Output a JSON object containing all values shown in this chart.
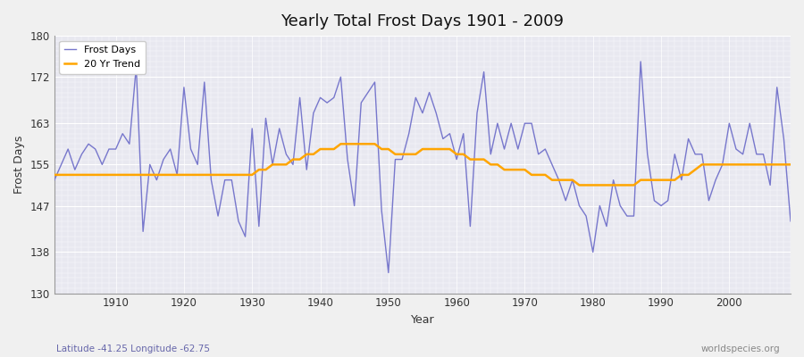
{
  "title": "Yearly Total Frost Days 1901 - 2009",
  "xlabel": "Year",
  "ylabel": "Frost Days",
  "subtitle": "Latitude -41.25 Longitude -62.75",
  "watermark": "worldspecies.org",
  "ylim": [
    130,
    180
  ],
  "yticks": [
    130,
    138,
    147,
    155,
    163,
    172,
    180
  ],
  "years": [
    1901,
    1902,
    1903,
    1904,
    1905,
    1906,
    1907,
    1908,
    1909,
    1910,
    1911,
    1912,
    1913,
    1914,
    1915,
    1916,
    1917,
    1918,
    1919,
    1920,
    1921,
    1922,
    1923,
    1924,
    1925,
    1926,
    1927,
    1928,
    1929,
    1930,
    1931,
    1932,
    1933,
    1934,
    1935,
    1936,
    1937,
    1938,
    1939,
    1940,
    1941,
    1942,
    1943,
    1944,
    1945,
    1946,
    1947,
    1948,
    1949,
    1950,
    1951,
    1952,
    1953,
    1954,
    1955,
    1956,
    1957,
    1958,
    1959,
    1960,
    1961,
    1962,
    1963,
    1964,
    1965,
    1966,
    1967,
    1968,
    1969,
    1970,
    1971,
    1972,
    1973,
    1974,
    1975,
    1976,
    1977,
    1978,
    1979,
    1980,
    1981,
    1982,
    1983,
    1984,
    1985,
    1986,
    1987,
    1988,
    1989,
    1990,
    1991,
    1992,
    1993,
    1994,
    1995,
    1996,
    1997,
    1998,
    1999,
    2000,
    2001,
    2002,
    2003,
    2004,
    2005,
    2006,
    2007,
    2008,
    2009
  ],
  "frost_days": [
    152,
    155,
    158,
    154,
    157,
    159,
    158,
    155,
    158,
    158,
    161,
    159,
    174,
    142,
    155,
    152,
    156,
    158,
    153,
    170,
    158,
    155,
    171,
    152,
    145,
    152,
    152,
    144,
    141,
    162,
    143,
    164,
    155,
    162,
    157,
    155,
    168,
    154,
    165,
    168,
    167,
    168,
    172,
    156,
    147,
    167,
    169,
    171,
    146,
    134,
    156,
    156,
    161,
    168,
    165,
    169,
    165,
    160,
    161,
    156,
    161,
    143,
    165,
    173,
    157,
    163,
    158,
    163,
    158,
    163,
    163,
    157,
    158,
    155,
    152,
    148,
    152,
    147,
    145,
    138,
    147,
    143,
    152,
    147,
    145,
    145,
    175,
    157,
    148,
    147,
    148,
    157,
    152,
    160,
    157,
    157,
    148,
    152,
    155,
    163,
    158,
    157,
    163,
    157,
    157,
    151,
    170,
    160,
    144
  ],
  "trend_years": [
    1901,
    1902,
    1903,
    1904,
    1905,
    1906,
    1907,
    1908,
    1909,
    1910,
    1911,
    1912,
    1913,
    1914,
    1915,
    1916,
    1917,
    1918,
    1919,
    1920,
    1921,
    1922,
    1923,
    1924,
    1925,
    1926,
    1927,
    1928,
    1929,
    1930,
    1931,
    1932,
    1933,
    1934,
    1935,
    1936,
    1937,
    1938,
    1939,
    1940,
    1941,
    1942,
    1943,
    1944,
    1945,
    1946,
    1947,
    1948,
    1949,
    1950,
    1951,
    1952,
    1953,
    1954,
    1955,
    1956,
    1957,
    1958,
    1959,
    1960,
    1961,
    1962,
    1963,
    1964,
    1965,
    1966,
    1967,
    1968,
    1969,
    1970,
    1971,
    1972,
    1973,
    1974,
    1975,
    1976,
    1977,
    1978,
    1979,
    1980,
    1981,
    1982,
    1983,
    1984,
    1985,
    1986,
    1987,
    1988,
    1989,
    1990,
    1991,
    1992,
    1993,
    1994,
    1995,
    1996,
    1997,
    1998,
    1999,
    2000,
    2001,
    2002,
    2003,
    2004,
    2005,
    2006,
    2007,
    2008,
    2009
  ],
  "trend_values": [
    153,
    153,
    153,
    153,
    153,
    153,
    153,
    153,
    153,
    153,
    153,
    153,
    153,
    153,
    153,
    153,
    153,
    153,
    153,
    153,
    153,
    153,
    153,
    153,
    153,
    153,
    153,
    153,
    153,
    153,
    154,
    154,
    155,
    155,
    155,
    156,
    156,
    157,
    157,
    158,
    158,
    158,
    159,
    159,
    159,
    159,
    159,
    159,
    158,
    158,
    157,
    157,
    157,
    157,
    158,
    158,
    158,
    158,
    158,
    157,
    157,
    156,
    156,
    156,
    155,
    155,
    154,
    154,
    154,
    154,
    153,
    153,
    153,
    152,
    152,
    152,
    152,
    151,
    151,
    151,
    151,
    151,
    151,
    151,
    151,
    151,
    152,
    152,
    152,
    152,
    152,
    152,
    153,
    153,
    154,
    155,
    155,
    155,
    155,
    155,
    155,
    155,
    155,
    155,
    155,
    155,
    155,
    155,
    155
  ],
  "line_color": "#7777cc",
  "trend_color": "#ffa500",
  "fig_bg_color": "#f0f0f0",
  "plot_bg_color": "#e8e8f0",
  "grid_color": "#ffffff",
  "legend_bg": "#ffffff",
  "subtitle_color": "#6666aa",
  "watermark_color": "#888888"
}
